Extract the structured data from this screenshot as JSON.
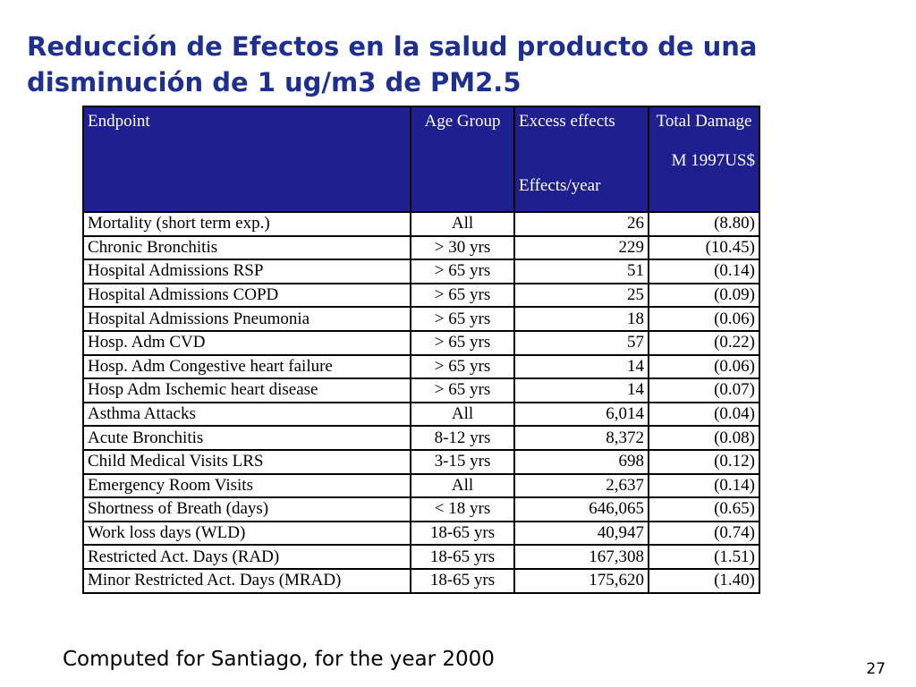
{
  "slide": {
    "title_line1": "Reducción de Efectos en la salud producto de una",
    "title_line2": "disminución de 1 ug/m3 de PM2.5",
    "footnote": "Computed for Santiago, for the year 2000",
    "page_number": "27"
  },
  "table": {
    "headers": {
      "endpoint": "Endpoint",
      "age_group": "Age Group",
      "excess_top": "Excess effects",
      "excess_bottom": "Effects/year",
      "damage_top": "Total Damage",
      "damage_bottom": "M 1997US$"
    },
    "rows": [
      {
        "endpoint": "Mortality (short term exp.)",
        "age": "All",
        "effects": "26",
        "damage": "(8.80)"
      },
      {
        "endpoint": "Chronic Bronchitis",
        "age": "> 30 yrs",
        "effects": "229",
        "damage": "(10.45)"
      },
      {
        "endpoint": "Hospital Admissions RSP",
        "age": "> 65 yrs",
        "effects": "51",
        "damage": "(0.14)"
      },
      {
        "endpoint": "Hospital Admissions COPD",
        "age": "> 65 yrs",
        "effects": "25",
        "damage": "(0.09)"
      },
      {
        "endpoint": "Hospital Admissions Pneumonia",
        "age": "> 65 yrs",
        "effects": "18",
        "damage": "(0.06)"
      },
      {
        "endpoint": "Hosp. Adm CVD",
        "age": "> 65 yrs",
        "effects": "57",
        "damage": "(0.22)"
      },
      {
        "endpoint": "Hosp. Adm Congestive heart failure",
        "age": "> 65 yrs",
        "effects": "14",
        "damage": "(0.06)"
      },
      {
        "endpoint": "Hosp Adm Ischemic heart disease",
        "age": "> 65 yrs",
        "effects": "14",
        "damage": "(0.07)"
      },
      {
        "endpoint": "Asthma Attacks",
        "age": "All",
        "effects": "6,014",
        "damage": "(0.04)"
      },
      {
        "endpoint": "Acute Bronchitis",
        "age": "8-12 yrs",
        "effects": "8,372",
        "damage": "(0.08)"
      },
      {
        "endpoint": "Child Medical Visits LRS",
        "age": "3-15 yrs",
        "effects": "698",
        "damage": "(0.12)"
      },
      {
        "endpoint": "Emergency Room Visits",
        "age": "All",
        "effects": "2,637",
        "damage": "(0.14)"
      },
      {
        "endpoint": "Shortness of Breath (days)",
        "age": "< 18 yrs",
        "effects": "646,065",
        "damage": "(0.65)"
      },
      {
        "endpoint": "Work loss days (WLD)",
        "age": "18-65 yrs",
        "effects": "40,947",
        "damage": "(0.74)"
      },
      {
        "endpoint": "Restricted Act. Days (RAD)",
        "age": "18-65 yrs",
        "effects": "167,308",
        "damage": "(1.51)"
      },
      {
        "endpoint": "Minor Restricted Act. Days (MRAD)",
        "age": "18-65 yrs",
        "effects": "175,620",
        "damage": "(1.40)"
      }
    ]
  },
  "colors": {
    "title": "#1f2f8f",
    "header_bg": "#1f1f8f",
    "header_text": "#ffffff"
  }
}
